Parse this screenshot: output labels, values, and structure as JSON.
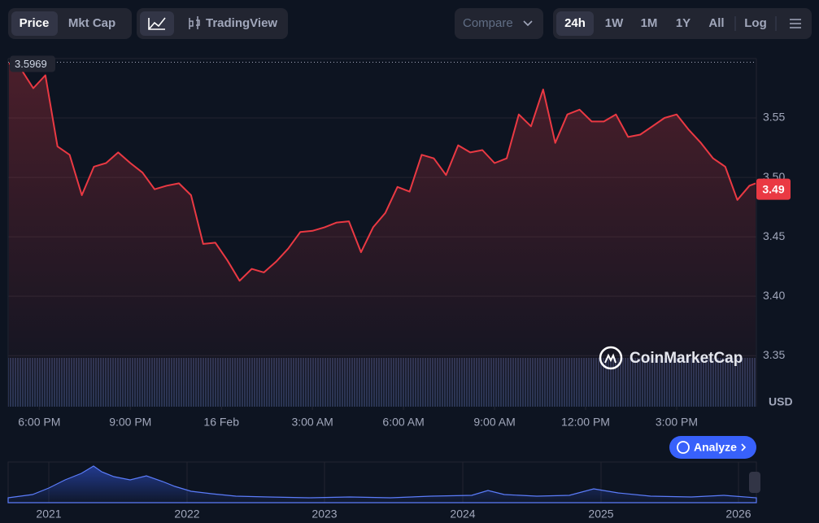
{
  "ui": {
    "tabs": [
      "Price",
      "Mkt Cap"
    ],
    "tradingview": "TradingView",
    "compare": "Compare",
    "ranges": [
      "24h",
      "1W",
      "1M",
      "1Y",
      "All"
    ],
    "log": "Log",
    "watermark": "CoinMarketCap",
    "analyze": "Analyze",
    "navigator_years": [
      "2021",
      "2022",
      "2023",
      "2024",
      "2025",
      "2026"
    ]
  },
  "chart_data": {
    "type": "line",
    "color": "#ea3943",
    "y_unit": "USD",
    "high": 3.5969,
    "last": 3.49,
    "x": [
      -1.0,
      -0.6,
      -0.2,
      0.2,
      0.6,
      1.0,
      1.4,
      1.8,
      2.2,
      2.6,
      3.0,
      3.4,
      3.8,
      4.2,
      4.6,
      5.0,
      5.4,
      5.8,
      6.2,
      6.6,
      7.0,
      7.4,
      7.8,
      8.2,
      8.6,
      9.0,
      9.4,
      9.8,
      10.2,
      10.6,
      11.0,
      11.4,
      11.8,
      12.2,
      12.6,
      13.0,
      13.4,
      13.8,
      14.2,
      14.6,
      15.0,
      15.4,
      15.8,
      16.2,
      16.6,
      17.0,
      17.4,
      17.8,
      18.2,
      18.6,
      19.0,
      19.4,
      19.8,
      20.2,
      20.6,
      21.0,
      21.4,
      21.8,
      22.2,
      22.6,
      23.0,
      23.4,
      23.6
    ],
    "values": [
      3.596,
      3.591,
      3.575,
      3.586,
      3.526,
      3.519,
      3.485,
      3.509,
      3.512,
      3.521,
      3.512,
      3.504,
      3.49,
      3.493,
      3.495,
      3.485,
      3.444,
      3.445,
      3.43,
      3.413,
      3.423,
      3.42,
      3.429,
      3.44,
      3.454,
      3.455,
      3.458,
      3.462,
      3.463,
      3.437,
      3.458,
      3.47,
      3.492,
      3.488,
      3.519,
      3.516,
      3.502,
      3.527,
      3.521,
      3.523,
      3.512,
      3.516,
      3.553,
      3.543,
      3.574,
      3.529,
      3.553,
      3.557,
      3.547,
      3.547,
      3.553,
      3.534,
      3.536,
      3.543,
      3.55,
      3.553,
      3.54,
      3.529,
      3.516,
      3.509,
      3.481,
      3.493,
      3.495
    ],
    "xlim": [
      -1.0,
      23.6
    ],
    "xticks": [
      {
        "value": 0,
        "label": "6:00 PM"
      },
      {
        "value": 3,
        "label": "9:00 PM"
      },
      {
        "value": 6,
        "label": "16 Feb"
      },
      {
        "value": 9,
        "label": "3:00 AM"
      },
      {
        "value": 12,
        "label": "6:00 AM"
      },
      {
        "value": 15,
        "label": "9:00 AM"
      },
      {
        "value": 18,
        "label": "12:00 PM"
      },
      {
        "value": 21,
        "label": "3:00 PM"
      }
    ],
    "ylim": [
      3.307,
      3.6
    ],
    "yticks": [
      3.35,
      {
        "value": 3.4,
        "label": "3.40"
      },
      3.45,
      {
        "value": 3.5,
        "label": "3.50"
      },
      3.55
    ],
    "grid": true
  }
}
